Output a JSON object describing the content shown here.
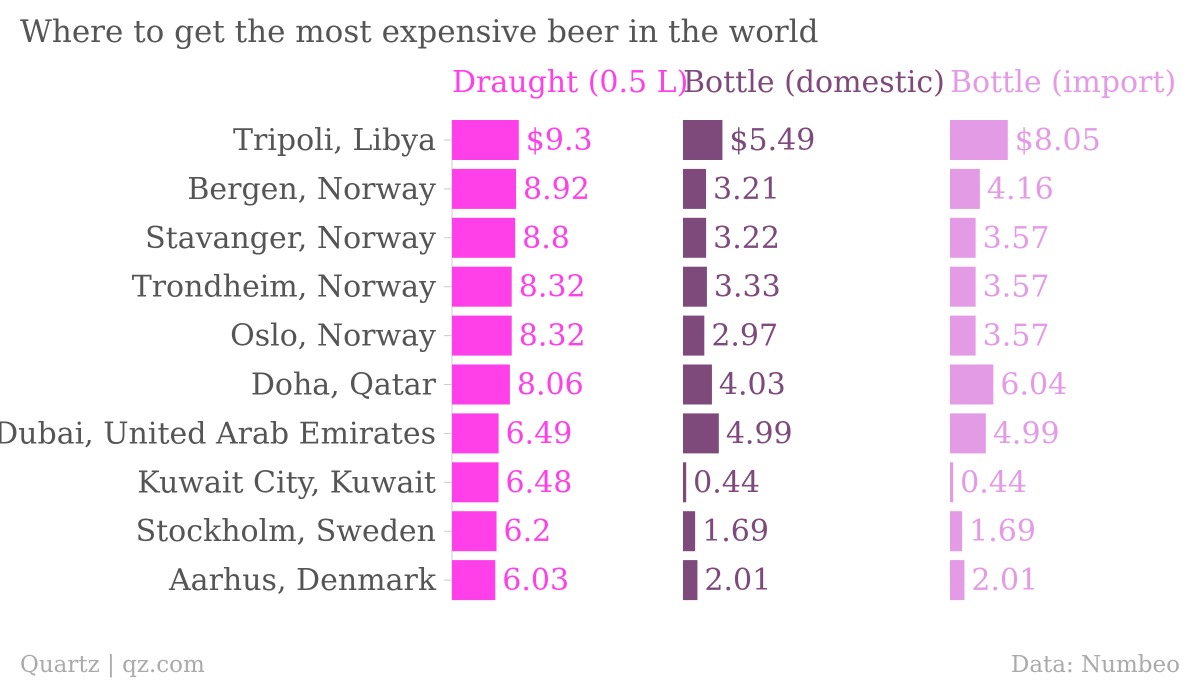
{
  "title": "Where to get the most expensive beer in the world",
  "footer": {
    "source_left": "Quartz | qz.com",
    "source_right": "Data: Numbeo"
  },
  "chart_data": {
    "type": "bar",
    "orientation": "horizontal",
    "title": "Where to get the most expensive beer in the world",
    "categories": [
      "Tripoli, Libya",
      "Bergen, Norway",
      "Stavanger, Norway",
      "Trondheim, Norway",
      "Oslo, Norway",
      "Doha, Qatar",
      "Dubai, United Arab Emirates",
      "Kuwait City, Kuwait",
      "Stockholm, Sweden",
      "Aarhus, Denmark"
    ],
    "series": [
      {
        "name": "Draught (0.5 L)",
        "color": "#ff40e8",
        "values": [
          9.3,
          8.92,
          8.8,
          8.32,
          8.32,
          8.06,
          6.49,
          6.48,
          6.2,
          6.03
        ],
        "labels": [
          "$9.3",
          "8.92",
          "8.8",
          "8.32",
          "8.32",
          "8.06",
          "6.49",
          "6.48",
          "6.2",
          "6.03"
        ]
      },
      {
        "name": "Bottle (domestic)",
        "color": "#7e4a7c",
        "values": [
          5.49,
          3.21,
          3.22,
          3.33,
          2.97,
          4.03,
          4.99,
          0.44,
          1.69,
          2.01
        ],
        "labels": [
          "$5.49",
          "3.21",
          "3.22",
          "3.33",
          "2.97",
          "4.03",
          "4.99",
          "0.44",
          "1.69",
          "2.01"
        ]
      },
      {
        "name": "Bottle (import)",
        "color": "#e49be6",
        "values": [
          8.05,
          4.16,
          3.57,
          3.57,
          3.57,
          6.04,
          4.99,
          0.44,
          1.69,
          2.01
        ],
        "labels": [
          "$8.05",
          "4.16",
          "3.57",
          "3.57",
          "3.57",
          "6.04",
          "4.99",
          "0.44",
          "1.69",
          "2.01"
        ]
      }
    ],
    "legend": "top, above each bar column",
    "grid": false
  }
}
